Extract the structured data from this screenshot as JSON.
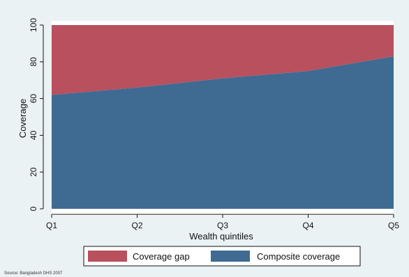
{
  "chart_data": {
    "type": "area",
    "categories": [
      "Q1",
      "Q2",
      "Q3",
      "Q4",
      "Q5"
    ],
    "series": [
      {
        "name": "Composite coverage",
        "values": [
          62,
          66,
          71,
          75,
          83
        ],
        "color": "#3f6b93"
      },
      {
        "name": "Coverage gap",
        "values": [
          38,
          34,
          29,
          25,
          17
        ],
        "color": "#b8505e"
      }
    ],
    "stacked": true,
    "xlabel": "Wealth quintiles",
    "ylabel": "Coverage",
    "ylim": [
      0,
      100
    ],
    "yticks": [
      0,
      20,
      40,
      60,
      80,
      100
    ],
    "grid": false,
    "legend_position": "bottom",
    "legend_order": [
      "Coverage gap",
      "Composite coverage"
    ],
    "source": "Source: Bangladesh DHS 2007"
  }
}
